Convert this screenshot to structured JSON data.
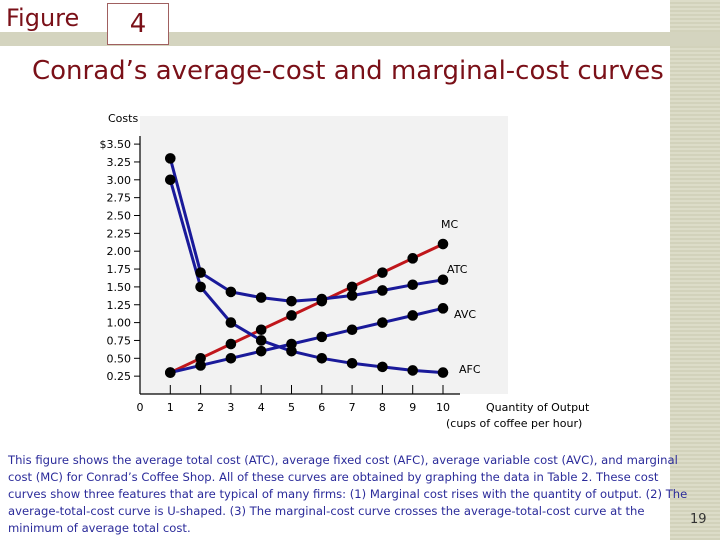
{
  "figure": {
    "label": "Figure",
    "number": "4"
  },
  "title": "Conrad’s average-cost and marginal-cost curves",
  "caption": "This figure shows the average total cost (ATC), average fixed cost (AFC), average variable cost (AVC), and marginal cost (MC) for Conrad’s Coffee Shop. All of these curves are obtained by graphing the data in Table 2. These cost curves show three features that are typical of many firms: (1) Marginal cost rises with the quantity of output. (2) The average-total-cost curve is U-shaped. (3) The marginal-cost curve crosses the average-total-cost curve at the minimum of average total cost.",
  "page_number": "19",
  "colors": {
    "title": "#7a1018",
    "mc": "#c0161b",
    "avg": "#1a1a9a",
    "marker": "#000000",
    "caption": "#2b2b9a"
  },
  "chart_data": {
    "type": "line",
    "ylabel": "Costs",
    "xlabel_line1": "Quantity of Output",
    "xlabel_line2": "(cups of coffee per hour)",
    "x_ticks": [
      "0",
      "1",
      "2",
      "3",
      "4",
      "5",
      "6",
      "7",
      "8",
      "9",
      "10"
    ],
    "y_ticks": [
      "0.25",
      "0.50",
      "0.75",
      "1.00",
      "1.25",
      "1.50",
      "1.75",
      "2.00",
      "2.25",
      "2.50",
      "2.75",
      "3.00",
      "3.25",
      "$3.50"
    ],
    "y_tick_values": [
      0.25,
      0.5,
      0.75,
      1.0,
      1.25,
      1.5,
      1.75,
      2.0,
      2.25,
      2.5,
      2.75,
      3.0,
      3.25,
      3.5
    ],
    "xlim": [
      0,
      10
    ],
    "ylim": [
      0,
      3.5
    ],
    "x": [
      1,
      2,
      3,
      4,
      5,
      6,
      7,
      8,
      9,
      10
    ],
    "series": [
      {
        "name": "MC",
        "color": "#c0161b",
        "values": [
          0.3,
          0.5,
          0.7,
          0.9,
          1.1,
          1.3,
          1.5,
          1.7,
          1.9,
          2.1
        ]
      },
      {
        "name": "ATC",
        "color": "#1a1a9a",
        "values": [
          3.3,
          1.7,
          1.43,
          1.35,
          1.3,
          1.33,
          1.38,
          1.45,
          1.53,
          1.6
        ]
      },
      {
        "name": "AVC",
        "color": "#1a1a9a",
        "values": [
          0.3,
          0.4,
          0.5,
          0.6,
          0.7,
          0.8,
          0.9,
          1.0,
          1.1,
          1.2
        ]
      },
      {
        "name": "AFC",
        "color": "#1a1a9a",
        "values": [
          3.0,
          1.5,
          1.0,
          0.75,
          0.6,
          0.5,
          0.43,
          0.38,
          0.33,
          0.3
        ]
      }
    ]
  }
}
